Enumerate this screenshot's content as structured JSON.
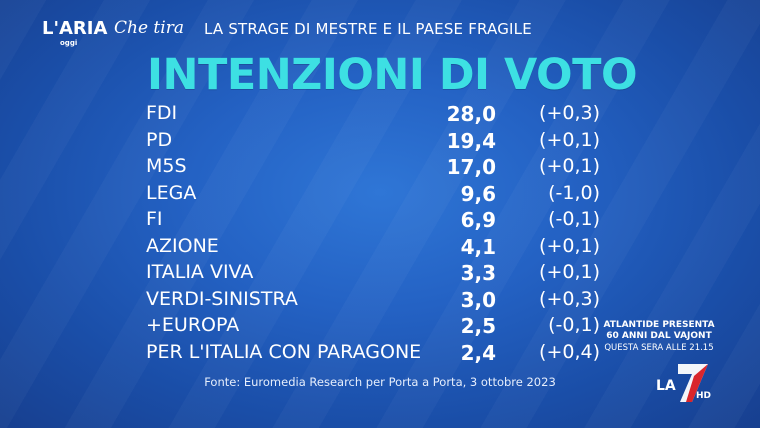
{
  "header": {
    "logo_main": "L'ARIA",
    "logo_sub": "oggi",
    "logo_script": "Che tira",
    "program_title": "LA STRAGE DI MESTRE E IL PAESE FRAGILE"
  },
  "chart_data": {
    "type": "table",
    "title": "INTENZIONI DI VOTO",
    "rows": [
      {
        "party": "FDI",
        "value": "28,0",
        "delta": "(+0,3)"
      },
      {
        "party": "PD",
        "value": "19,4",
        "delta": "(+0,1)"
      },
      {
        "party": "M5S",
        "value": "17,0",
        "delta": "(+0,1)"
      },
      {
        "party": "LEGA",
        "value": "9,6",
        "delta": "(-1,0)"
      },
      {
        "party": "FI",
        "value": "6,9",
        "delta": "(-0,1)"
      },
      {
        "party": "AZIONE",
        "value": "4,1",
        "delta": "(+0,1)"
      },
      {
        "party": "ITALIA VIVA",
        "value": "3,3",
        "delta": "(+0,1)"
      },
      {
        "party": "VERDI-SINISTRA",
        "value": "3,0",
        "delta": "(+0,3)"
      },
      {
        "party": "+EUROPA",
        "value": "2,5",
        "delta": "(-0,1)"
      },
      {
        "party": "PER L'ITALIA CON PARAGONE",
        "value": "2,4",
        "delta": "(+0,4)"
      }
    ],
    "source": "Fonte: Euromedia Research per Porta a Porta, 3 ottobre 2023"
  },
  "promo": {
    "line1": "ATLANTIDE PRESENTA",
    "line2": "60 ANNI DAL VAJONT",
    "line3": "QUESTA SERA ALLE 21.15"
  },
  "channel": {
    "name": "LA",
    "number": "7",
    "hd": "HD"
  },
  "colors": {
    "background": "#1e57b8",
    "title": "#3de0e3",
    "text": "#ffffff",
    "logo_accent": "#1ec8c8",
    "seven_red": "#d9262c"
  }
}
